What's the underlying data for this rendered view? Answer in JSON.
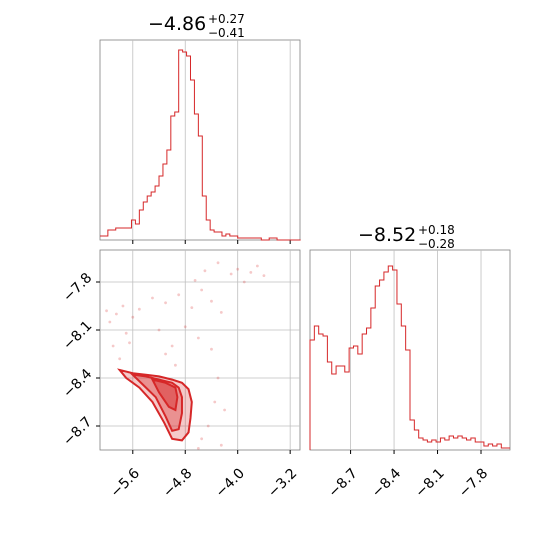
{
  "colors": {
    "accent": "#d62728",
    "grid": "#bfbfbf",
    "frame": "#808080"
  },
  "chart_data": [
    {
      "type": "histogram",
      "panel": "top-left",
      "title": {
        "main": "−4.86",
        "sup": "+0.27",
        "sub": "−0.41"
      },
      "xlim": [
        -6.1,
        -3.05
      ],
      "ylim": [
        0,
        1.0
      ],
      "grid": true,
      "x": [
        -6.1,
        -5.98,
        -5.86,
        -5.74,
        -5.62,
        -5.56,
        -5.5,
        -5.44,
        -5.38,
        -5.32,
        -5.26,
        -5.2,
        -5.14,
        -5.08,
        -5.02,
        -4.96,
        -4.9,
        -4.84,
        -4.78,
        -4.72,
        -4.66,
        -4.6,
        -4.54,
        -4.48,
        -4.42,
        -4.36,
        -4.3,
        -4.24,
        -4.18,
        -4.12,
        -4.0,
        -3.88,
        -3.76,
        -3.64,
        -3.52,
        -3.4,
        -3.28,
        -3.16
      ],
      "values": [
        0.02,
        0.05,
        0.06,
        0.06,
        0.1,
        0.08,
        0.15,
        0.19,
        0.22,
        0.24,
        0.27,
        0.32,
        0.38,
        0.45,
        0.62,
        0.64,
        0.95,
        0.94,
        0.92,
        0.8,
        0.63,
        0.52,
        0.22,
        0.1,
        0.05,
        0.04,
        0.04,
        0.02,
        0.03,
        0.02,
        0.01,
        0.01,
        0.01,
        0.0,
        0.01,
        0.0,
        0.0,
        0.0
      ]
    },
    {
      "type": "contour+scatter",
      "panel": "bottom-left",
      "xlim": [
        -6.1,
        -3.05
      ],
      "ylim": [
        -8.85,
        -7.6
      ],
      "grid": true,
      "x_ticks": [
        -5.6,
        -4.8,
        -4.0,
        -3.2
      ],
      "x_tick_labels": [
        "−5.6",
        "−4.8",
        "−4.0",
        "−3.2"
      ],
      "y_ticks": [
        -7.8,
        -8.1,
        -8.4,
        -8.7
      ],
      "y_tick_labels": [
        "−7.8",
        "−8.1",
        "−8.4",
        "−8.7"
      ],
      "contour_level_1": [
        [
          -5.8,
          -8.35
        ],
        [
          -5.6,
          -8.37
        ],
        [
          -5.4,
          -8.38
        ],
        [
          -5.2,
          -8.39
        ],
        [
          -5.0,
          -8.41
        ],
        [
          -4.85,
          -8.43
        ],
        [
          -4.75,
          -8.47
        ],
        [
          -4.7,
          -8.55
        ],
        [
          -4.72,
          -8.65
        ],
        [
          -4.75,
          -8.74
        ],
        [
          -4.85,
          -8.79
        ],
        [
          -5.0,
          -8.78
        ],
        [
          -5.12,
          -8.68
        ],
        [
          -5.3,
          -8.55
        ],
        [
          -5.5,
          -8.46
        ],
        [
          -5.7,
          -8.4
        ]
      ],
      "contour_level_2": [
        [
          -5.6,
          -8.38
        ],
        [
          -5.4,
          -8.39
        ],
        [
          -5.2,
          -8.41
        ],
        [
          -5.0,
          -8.43
        ],
        [
          -4.9,
          -8.46
        ],
        [
          -4.85,
          -8.52
        ],
        [
          -4.85,
          -8.62
        ],
        [
          -4.9,
          -8.72
        ],
        [
          -5.0,
          -8.73
        ],
        [
          -5.1,
          -8.64
        ],
        [
          -5.25,
          -8.52
        ],
        [
          -5.45,
          -8.44
        ]
      ],
      "contour_level_3": [
        [
          -5.3,
          -8.41
        ],
        [
          -5.1,
          -8.43
        ],
        [
          -4.95,
          -8.46
        ],
        [
          -4.92,
          -8.52
        ],
        [
          -4.95,
          -8.6
        ],
        [
          -5.05,
          -8.58
        ],
        [
          -5.2,
          -8.49
        ]
      ],
      "scatter_points": [
        [
          -5.95,
          -8.05
        ],
        [
          -5.85,
          -8.0
        ],
        [
          -5.75,
          -7.95
        ],
        [
          -5.6,
          -8.02
        ],
        [
          -5.5,
          -7.97
        ],
        [
          -5.3,
          -7.9
        ],
        [
          -5.1,
          -7.93
        ],
        [
          -4.9,
          -7.88
        ],
        [
          -4.7,
          -7.96
        ],
        [
          -4.55,
          -7.85
        ],
        [
          -4.4,
          -7.92
        ],
        [
          -4.25,
          -7.99
        ],
        [
          -4.1,
          -7.75
        ],
        [
          -4.0,
          -7.72
        ],
        [
          -3.9,
          -7.8
        ],
        [
          -3.8,
          -7.74
        ],
        [
          -3.7,
          -7.7
        ],
        [
          -3.6,
          -7.76
        ],
        [
          -4.3,
          -7.68
        ],
        [
          -4.5,
          -7.73
        ],
        [
          -4.65,
          -7.79
        ],
        [
          -4.8,
          -8.08
        ],
        [
          -4.6,
          -8.15
        ],
        [
          -4.4,
          -8.22
        ],
        [
          -4.3,
          -8.4
        ],
        [
          -4.35,
          -8.55
        ],
        [
          -4.45,
          -8.7
        ],
        [
          -4.55,
          -8.78
        ],
        [
          -5.9,
          -8.2
        ],
        [
          -5.8,
          -8.28
        ],
        [
          -5.7,
          -8.12
        ],
        [
          -5.2,
          -8.1
        ],
        [
          -5.0,
          -8.2
        ],
        [
          -4.95,
          -8.32
        ],
        [
          -5.1,
          -8.25
        ],
        [
          -4.2,
          -8.6
        ],
        [
          -4.25,
          -8.82
        ],
        [
          -4.6,
          -8.84
        ],
        [
          -6.0,
          -7.98
        ],
        [
          -5.65,
          -8.18
        ]
      ]
    },
    {
      "type": "histogram",
      "panel": "bottom-right",
      "title": {
        "main": "−8.52",
        "sup": "+0.18",
        "sub": "−0.28"
      },
      "xlim": [
        -8.98,
        -7.6
      ],
      "ylim": [
        0,
        1.0
      ],
      "grid": true,
      "x_ticks": [
        -8.7,
        -8.4,
        -8.1,
        -7.8
      ],
      "x_tick_labels": [
        "−8.7",
        "−8.4",
        "−8.1",
        "−7.8"
      ],
      "x": [
        -8.98,
        -8.95,
        -8.92,
        -8.89,
        -8.86,
        -8.83,
        -8.8,
        -8.77,
        -8.74,
        -8.71,
        -8.68,
        -8.65,
        -8.62,
        -8.59,
        -8.56,
        -8.53,
        -8.5,
        -8.47,
        -8.44,
        -8.41,
        -8.38,
        -8.35,
        -8.32,
        -8.29,
        -8.26,
        -8.23,
        -8.2,
        -8.17,
        -8.14,
        -8.11,
        -8.08,
        -8.05,
        -8.02,
        -7.99,
        -7.96,
        -7.93,
        -7.9,
        -7.87,
        -7.84,
        -7.81,
        -7.78,
        -7.75,
        -7.72,
        -7.69,
        -7.66,
        -7.63
      ],
      "values": [
        0.55,
        0.62,
        0.58,
        0.57,
        0.44,
        0.38,
        0.42,
        0.42,
        0.39,
        0.51,
        0.52,
        0.48,
        0.58,
        0.61,
        0.71,
        0.82,
        0.85,
        0.89,
        0.92,
        0.9,
        0.73,
        0.62,
        0.5,
        0.15,
        0.1,
        0.06,
        0.05,
        0.04,
        0.05,
        0.04,
        0.06,
        0.05,
        0.07,
        0.06,
        0.07,
        0.06,
        0.05,
        0.06,
        0.04,
        0.04,
        0.02,
        0.03,
        0.02,
        0.03,
        0.01,
        0.01
      ]
    }
  ]
}
